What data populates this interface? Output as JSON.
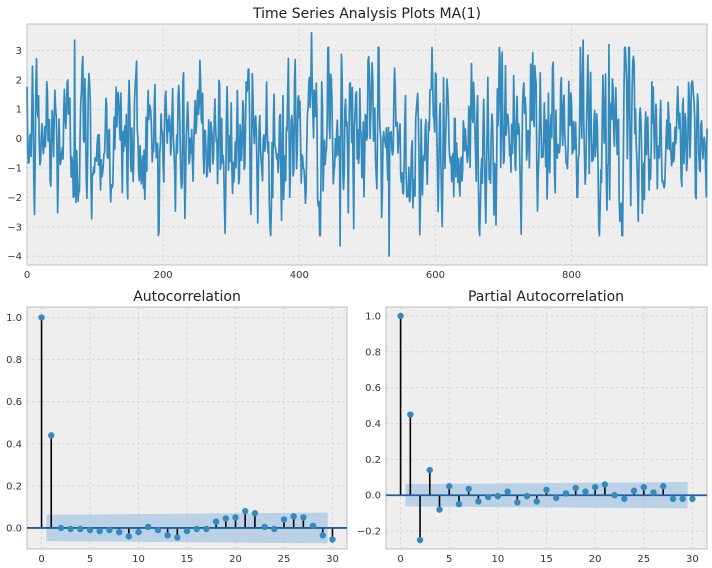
{
  "chart_data": [
    {
      "type": "line",
      "title": "Time Series Analysis Plots MA(1)",
      "xlabel": "",
      "ylabel": "",
      "xlim": [
        0,
        999
      ],
      "ylim": [
        -4.3,
        3.9
      ],
      "xticks": [
        0,
        200,
        400,
        600,
        800
      ],
      "yticks": [
        -4,
        -3,
        -2,
        -1,
        0,
        1,
        2,
        3
      ],
      "grid": true,
      "color": "#348ABD",
      "n_points": 1000,
      "extremes": [
        {
          "x": 70,
          "y": 3.35
        },
        {
          "x": 418,
          "y": 3.6
        },
        {
          "x": 532,
          "y": -4.0
        },
        {
          "x": 460,
          "y": -3.65
        },
        {
          "x": 817,
          "y": 3.35
        },
        {
          "x": 855,
          "y": 3.2
        }
      ]
    },
    {
      "type": "stem",
      "title": "Autocorrelation",
      "xlabel": "",
      "ylabel": "",
      "xlim": [
        -1.5,
        31.5
      ],
      "ylim": [
        -0.1,
        1.05
      ],
      "xticks": [
        0,
        5,
        10,
        15,
        20,
        25,
        30
      ],
      "yticks": [
        0.0,
        0.2,
        0.4,
        0.6,
        0.8,
        1.0
      ],
      "grid": true,
      "lags": [
        0,
        1,
        2,
        3,
        4,
        5,
        6,
        7,
        8,
        9,
        10,
        11,
        12,
        13,
        14,
        15,
        16,
        17,
        18,
        19,
        20,
        21,
        22,
        23,
        24,
        25,
        26,
        27,
        28,
        29,
        30
      ],
      "values": [
        1.0,
        0.44,
        0.0,
        -0.005,
        -0.005,
        -0.01,
        -0.015,
        -0.01,
        -0.02,
        -0.04,
        -0.02,
        0.005,
        -0.01,
        -0.035,
        -0.045,
        -0.015,
        -0.005,
        -0.005,
        0.03,
        0.045,
        0.05,
        0.08,
        0.07,
        0.005,
        -0.005,
        0.04,
        0.055,
        0.05,
        0.01,
        -0.035,
        -0.055
      ],
      "confidence_band": 0.062
    },
    {
      "type": "stem",
      "title": "Partial Autocorrelation",
      "xlabel": "",
      "ylabel": "",
      "xlim": [
        -1.5,
        31.5
      ],
      "ylim": [
        -0.3,
        1.05
      ],
      "xticks": [
        0,
        5,
        10,
        15,
        20,
        25,
        30
      ],
      "yticks": [
        -0.2,
        0.0,
        0.2,
        0.4,
        0.6,
        0.8,
        1.0
      ],
      "grid": true,
      "lags": [
        0,
        1,
        2,
        3,
        4,
        5,
        6,
        7,
        8,
        9,
        10,
        11,
        12,
        13,
        14,
        15,
        16,
        17,
        18,
        19,
        20,
        21,
        22,
        23,
        24,
        25,
        26,
        27,
        28,
        29,
        30
      ],
      "values": [
        1.0,
        0.45,
        -0.25,
        0.14,
        -0.08,
        0.05,
        -0.05,
        0.035,
        -0.035,
        -0.01,
        -0.005,
        0.02,
        -0.04,
        -0.005,
        -0.035,
        0.03,
        -0.015,
        0.01,
        0.04,
        0.02,
        0.045,
        0.06,
        0.0,
        -0.02,
        0.025,
        0.045,
        0.015,
        0.05,
        -0.02,
        -0.02,
        -0.02
      ],
      "confidence_band": 0.062
    }
  ],
  "colors": {
    "line": "#348ABD",
    "marker": "#348ABD",
    "stem": "#000000",
    "zero_line": "#1f5fa0",
    "band": "#a9c7e2",
    "axes_bg": "#eeeeee",
    "grid": "#cfcfcf"
  }
}
